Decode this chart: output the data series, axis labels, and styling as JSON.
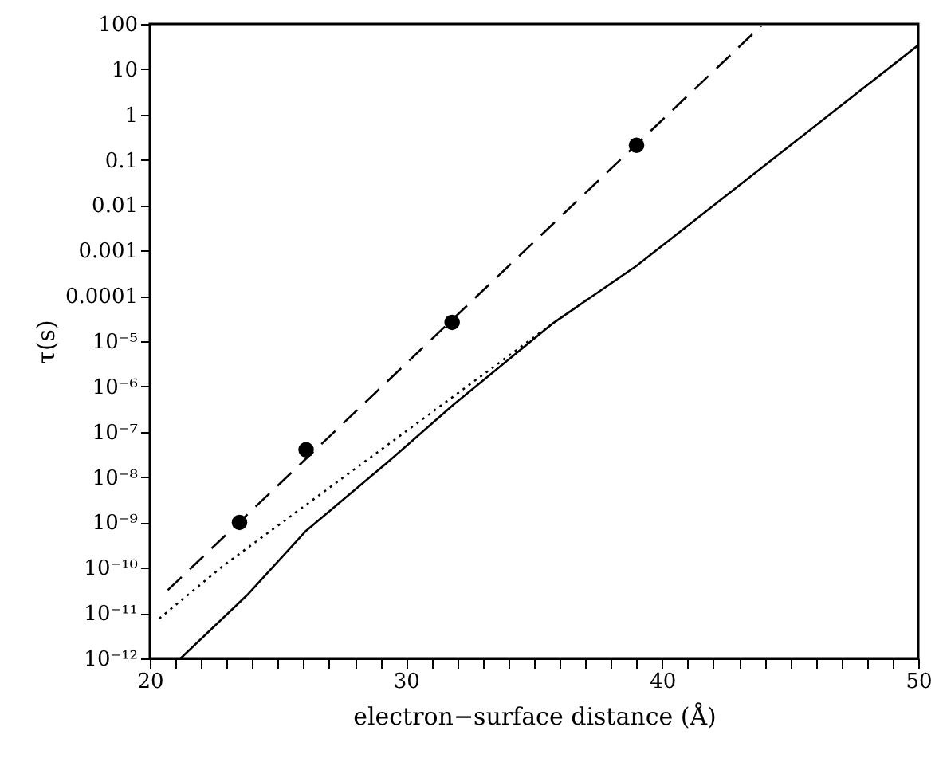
{
  "chart_data": {
    "type": "line",
    "xlabel": "electron−surface distance (Å)",
    "ylabel": "τ(s)",
    "log": "y",
    "grid": false,
    "xlim": [
      20,
      50
    ],
    "ylim": [
      1e-12,
      100
    ],
    "xticks": [
      20,
      {
        "value": 21,
        "label": null
      },
      {
        "value": 22,
        "label": null
      },
      {
        "value": 23,
        "label": null
      },
      {
        "value": 24,
        "label": null
      },
      {
        "value": 25,
        "label": null
      },
      {
        "value": 26,
        "label": null
      },
      {
        "value": 27,
        "label": null
      },
      {
        "value": 28,
        "label": null
      },
      {
        "value": 29,
        "label": null
      },
      30,
      {
        "value": 31,
        "label": null
      },
      {
        "value": 32,
        "label": null
      },
      {
        "value": 33,
        "label": null
      },
      {
        "value": 34,
        "label": null
      },
      {
        "value": 35,
        "label": null
      },
      {
        "value": 36,
        "label": null
      },
      {
        "value": 37,
        "label": null
      },
      {
        "value": 38,
        "label": null
      },
      {
        "value": 39,
        "label": null
      },
      40,
      {
        "value": 41,
        "label": null
      },
      {
        "value": 42,
        "label": null
      },
      {
        "value": 43,
        "label": null
      },
      {
        "value": 44,
        "label": null
      },
      {
        "value": 45,
        "label": null
      },
      {
        "value": 46,
        "label": null
      },
      {
        "value": 47,
        "label": null
      },
      {
        "value": 48,
        "label": null
      },
      {
        "value": 49,
        "label": null
      },
      50
    ],
    "yticks": [
      100,
      10,
      1,
      0.1,
      0.01,
      0.001,
      0.0001,
      {
        "value": 1e-05,
        "label": "10⁻⁵"
      },
      {
        "value": 1e-06,
        "label": "10⁻⁶"
      },
      {
        "value": 1e-07,
        "label": "10⁻⁷"
      },
      {
        "value": 1e-08,
        "label": "10⁻⁸"
      },
      {
        "value": 1e-09,
        "label": "10⁻⁹"
      },
      {
        "value": 1e-10,
        "label": "10⁻¹⁰"
      },
      {
        "value": 1e-11,
        "label": "10⁻¹¹"
      },
      {
        "value": 1e-12,
        "label": "10⁻¹²"
      }
    ],
    "series": [
      {
        "type": "line",
        "line_style": "dashed",
        "color": "#000000",
        "x": [
          20.7,
          43.87
        ],
        "values": [
          3.2e-11,
          91
        ]
      },
      {
        "type": "line",
        "line_style": "dotted",
        "color": "#000000",
        "x": [
          20.37,
          22.86,
          35.7,
          37.1
        ],
        "values": [
          7.6e-12,
          1.1e-10,
          2.4e-05,
          8.5e-05
        ]
      },
      {
        "type": "line",
        "line_style": "solid",
        "color": "#000000",
        "x": [
          21.2,
          23.8,
          26.07,
          29.27,
          31.86,
          35.7,
          39,
          50
        ],
        "values": [
          1e-12,
          2.5e-11,
          6.3e-10,
          2.1e-08,
          4e-07,
          2.4e-05,
          0.00046,
          34
        ]
      },
      {
        "type": "scatter",
        "marker": "circle",
        "color": "#000000",
        "x": [
          23.5,
          26.1,
          31.8,
          39.0
        ],
        "values": [
          1e-09,
          4e-08,
          2.6e-05,
          0.21
        ]
      }
    ]
  }
}
